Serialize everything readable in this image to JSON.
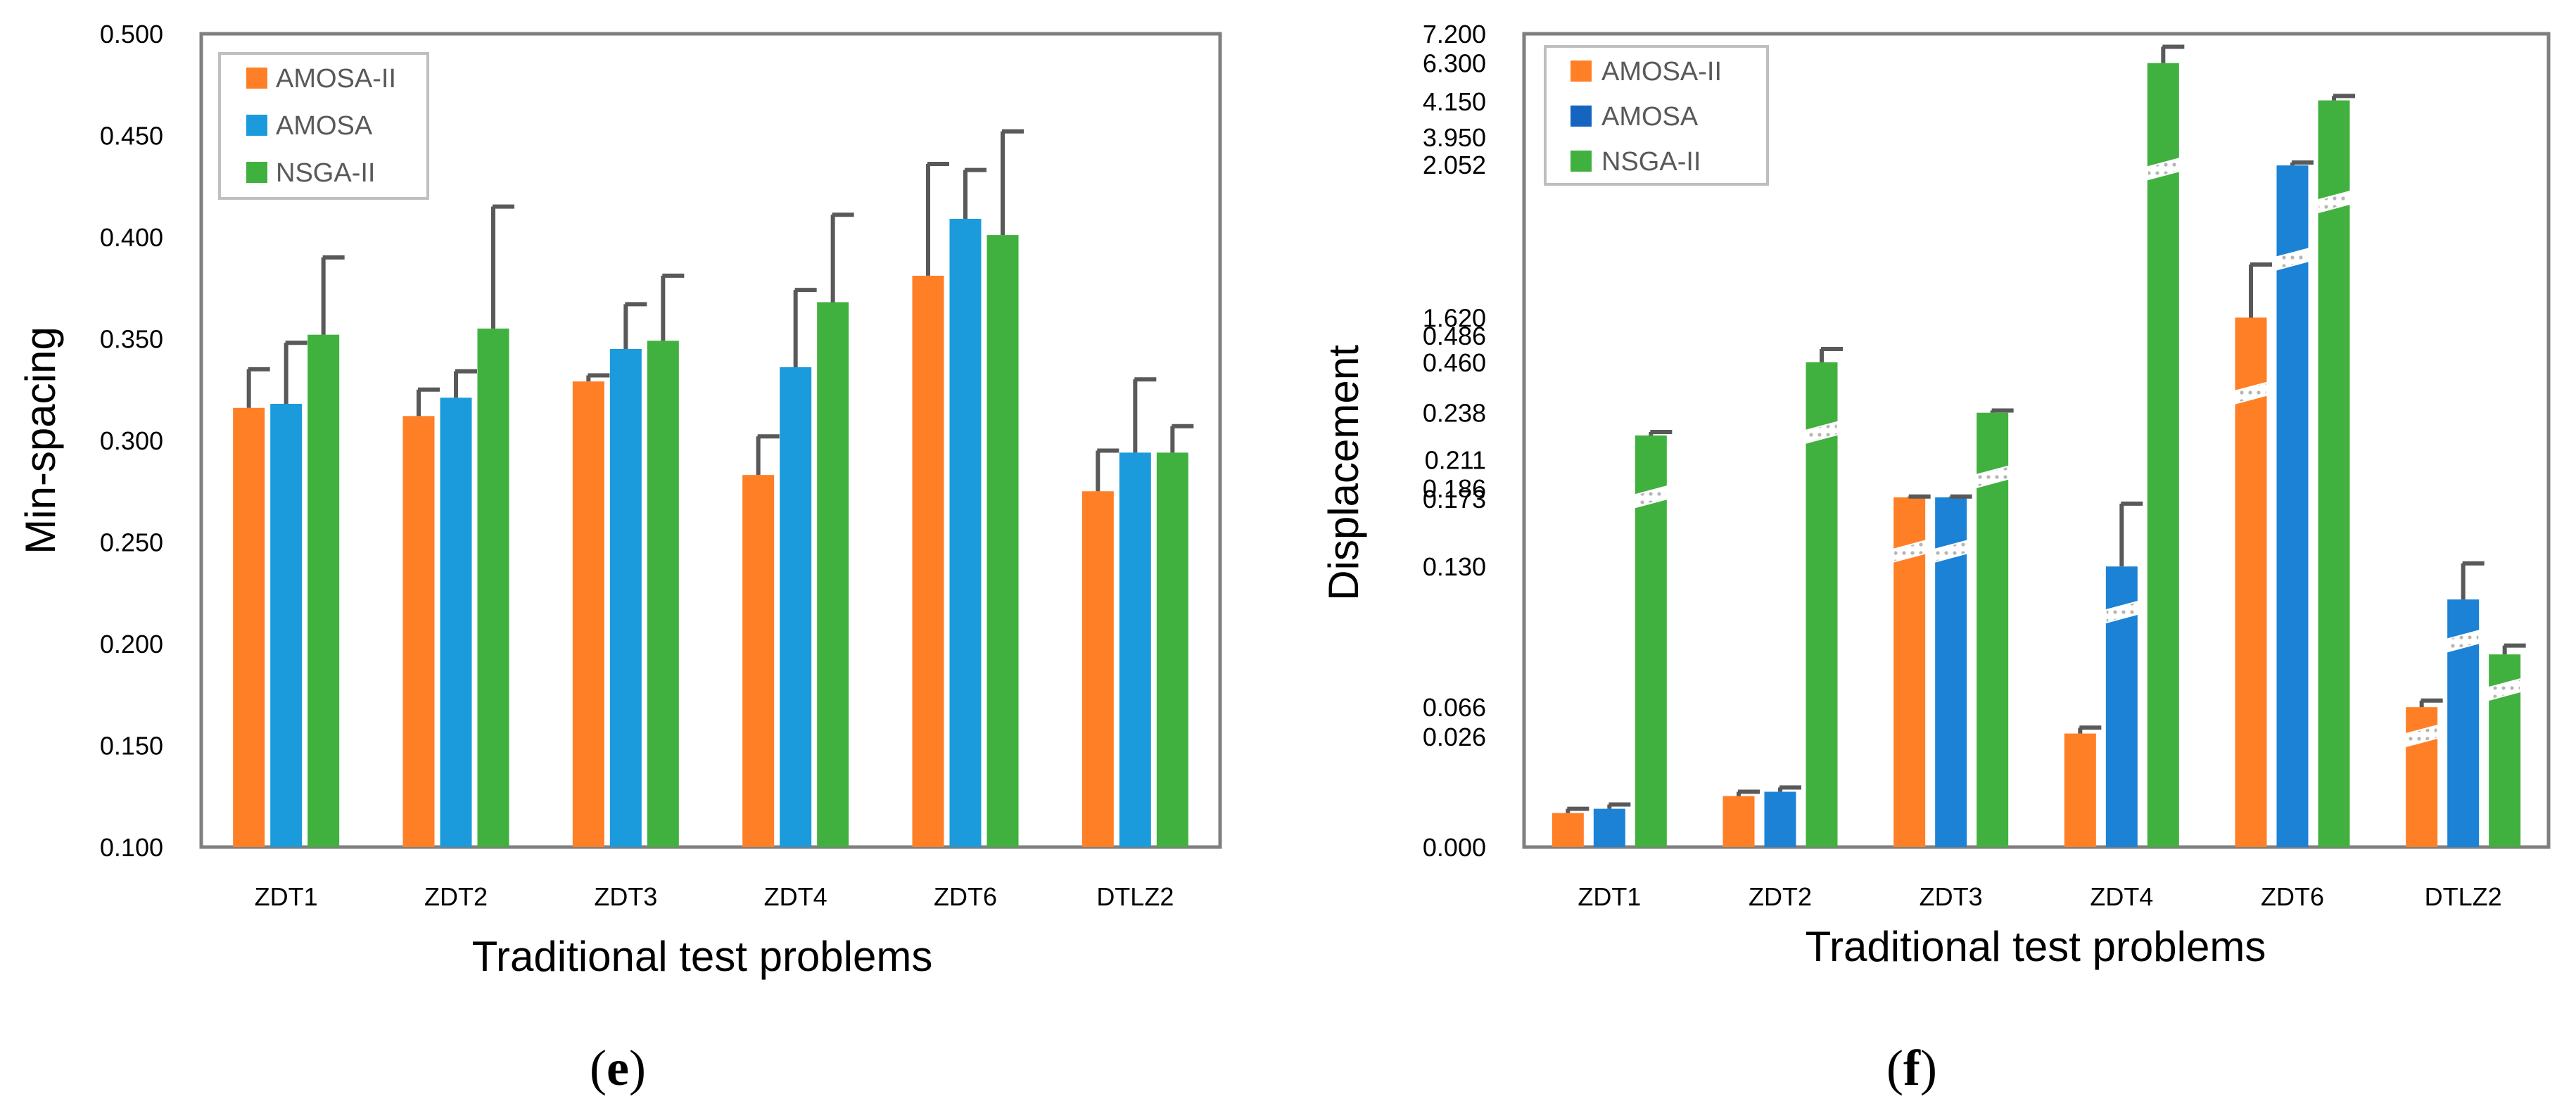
{
  "colors": {
    "AMOSA-II": "#FF7F27",
    "AMOSA": "#1B9BDB",
    "NSGA-II": "#40B13E",
    "frame": "#7F7F7F",
    "errorbar": "#595959"
  },
  "chart_data": [
    {
      "id": "e",
      "type": "bar",
      "caption": "e",
      "xlabel": "Traditional test problems",
      "ylabel": "Min-spacing",
      "ylim": [
        0.1,
        0.5
      ],
      "yticks": [
        "0.100",
        "0.150",
        "0.200",
        "0.250",
        "0.300",
        "0.350",
        "0.400",
        "0.450",
        "0.500"
      ],
      "categories": [
        "ZDT1",
        "ZDT2",
        "ZDT3",
        "ZDT4",
        "ZDT6",
        "DTLZ2"
      ],
      "legend": [
        "AMOSA-II",
        "AMOSA",
        "NSGA-II"
      ],
      "legend_position": "top-left",
      "series": [
        {
          "name": "AMOSA-II",
          "values": [
            0.316,
            0.312,
            0.329,
            0.283,
            0.381,
            0.275
          ],
          "errors": [
            0.019,
            0.013,
            0.003,
            0.019,
            0.055,
            0.02
          ]
        },
        {
          "name": "AMOSA",
          "values": [
            0.318,
            0.321,
            0.345,
            0.336,
            0.409,
            0.294
          ],
          "errors": [
            0.03,
            0.013,
            0.022,
            0.038,
            0.024,
            0.036
          ]
        },
        {
          "name": "NSGA-II",
          "values": [
            0.352,
            0.355,
            0.349,
            0.368,
            0.401,
            0.294
          ],
          "errors": [
            0.038,
            0.06,
            0.032,
            0.043,
            0.051,
            0.013
          ]
        }
      ]
    },
    {
      "id": "f",
      "type": "bar",
      "caption": "f",
      "xlabel": "Traditional test problems",
      "ylabel": "Displacement",
      "yaxis": "broken (non-linear segments)",
      "yticks": [
        "0.000",
        "0.026",
        "0.066",
        "0.130",
        "0.173",
        "0.186",
        "0.211",
        "0.238",
        "0.460",
        "0.486",
        "1.620",
        "2.052",
        "3.950",
        "4.150",
        "6.300",
        "7.200"
      ],
      "categories": [
        "ZDT1",
        "ZDT2",
        "ZDT3",
        "ZDT4",
        "ZDT6",
        "DTLZ2"
      ],
      "legend": [
        "AMOSA-II",
        "AMOSA",
        "NSGA-II"
      ],
      "legend_position": "top-left",
      "series": [
        {
          "name": "AMOSA-II",
          "values": [
            0.008,
            0.012,
            0.175,
            0.03,
            1.62,
            0.066
          ],
          "errors": [
            0.001,
            0.001,
            0.001,
            0.008,
            0.15,
            0.003
          ]
        },
        {
          "name": "AMOSA",
          "values": [
            0.009,
            0.013,
            0.175,
            0.13,
            2.05,
            0.115
          ],
          "errors": [
            0.001,
            0.001,
            0.001,
            0.04,
            0.15,
            0.017
          ]
        },
        {
          "name": "NSGA-II",
          "values": [
            0.225,
            0.46,
            0.238,
            6.3,
            4.2,
            0.09
          ],
          "errors": [
            0.002,
            0.013,
            0.01,
            0.5,
            0.25,
            0.004
          ]
        }
      ],
      "axis_breaks": {
        "AMOSA-II": [
          false,
          false,
          true,
          false,
          true,
          true
        ],
        "AMOSA": [
          false,
          false,
          true,
          true,
          true,
          true
        ],
        "NSGA-II": [
          true,
          true,
          true,
          true,
          true,
          true
        ]
      }
    }
  ]
}
